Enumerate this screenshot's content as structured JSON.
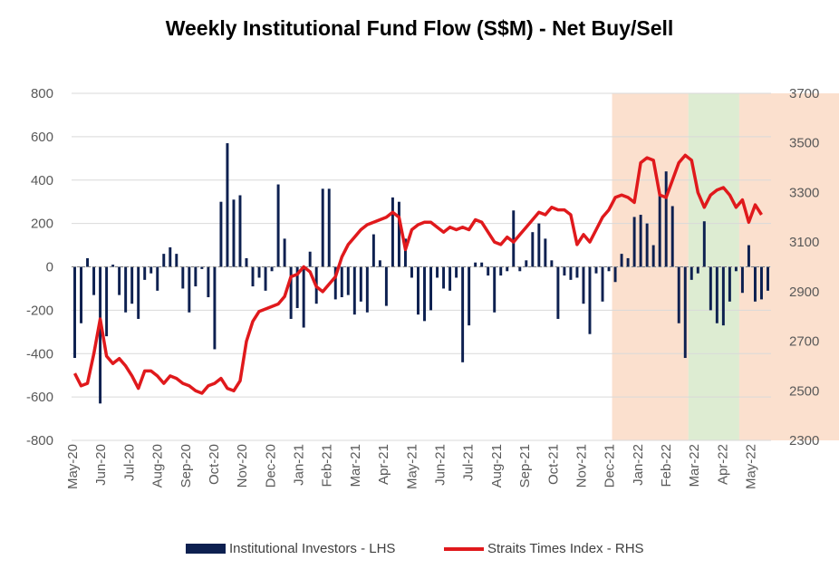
{
  "chart_data": {
    "type": "bar+line",
    "title": "Weekly Institutional Fund Flow (S$M) - Net Buy/Sell",
    "y_left": {
      "label": "",
      "ylim": [
        -800,
        800
      ],
      "ticks": [
        800,
        600,
        400,
        200,
        0,
        -200,
        -400,
        -600,
        -800
      ]
    },
    "y_right": {
      "label": "",
      "ylim": [
        2300,
        3700
      ],
      "ticks": [
        3700,
        3500,
        3300,
        3100,
        2900,
        2700,
        2500,
        2300
      ]
    },
    "x_labels": [
      "May-20",
      "Jun-20",
      "Jul-20",
      "Aug-20",
      "Sep-20",
      "Oct-20",
      "Nov-20",
      "Dec-20",
      "Jan-21",
      "Feb-21",
      "Mar-21",
      "Apr-21",
      "May-21",
      "Jun-21",
      "Jul-21",
      "Aug-21",
      "Sep-21",
      "Oct-21",
      "Nov-21",
      "Dec-21",
      "Jan-22",
      "Feb-22",
      "Mar-22",
      "Apr-22",
      "May-22"
    ],
    "shaded_regions": [
      {
        "from_week": 85,
        "to_week": 97,
        "color": "#f8cbad"
      },
      {
        "from_week": 97,
        "to_week": 105,
        "color": "#c6e0b4"
      },
      {
        "from_week": 105,
        "to_week": 121,
        "color": "#f8cbad"
      }
    ],
    "series": [
      {
        "name": "Institutional Investors - LHS",
        "type": "bar",
        "color": "#0d2050",
        "values": [
          -420,
          -260,
          40,
          -130,
          -630,
          -320,
          10,
          -130,
          -210,
          -170,
          -240,
          -60,
          -30,
          -110,
          60,
          90,
          60,
          -100,
          -210,
          -90,
          -10,
          -140,
          -380,
          300,
          570,
          310,
          330,
          40,
          -90,
          -50,
          -110,
          -20,
          380,
          130,
          -240,
          -190,
          -280,
          70,
          -170,
          360,
          360,
          -150,
          -140,
          -130,
          -220,
          -160,
          -210,
          150,
          30,
          -180,
          320,
          300,
          130,
          -50,
          -220,
          -250,
          -200,
          -50,
          -100,
          -110,
          -50,
          -440,
          -270,
          20,
          20,
          -40,
          -210,
          -40,
          -20,
          260,
          -20,
          30,
          160,
          200,
          130,
          30,
          -240,
          -40,
          -60,
          -50,
          -170,
          -310,
          -30,
          -160,
          -20,
          -70,
          60,
          40,
          230,
          240,
          200,
          100,
          330,
          440,
          280,
          -260,
          -420,
          -60,
          -30,
          210,
          -200,
          -260,
          -270,
          -160,
          -20,
          -120,
          100,
          -160,
          -150,
          -110
        ]
      },
      {
        "name": "Straits Times Index - RHS",
        "type": "line",
        "color": "#e0191c",
        "values": [
          2570,
          2520,
          2530,
          2650,
          2790,
          2640,
          2610,
          2630,
          2600,
          2560,
          2510,
          2580,
          2580,
          2560,
          2530,
          2560,
          2550,
          2530,
          2520,
          2500,
          2490,
          2520,
          2530,
          2550,
          2510,
          2500,
          2540,
          2700,
          2780,
          2820,
          2830,
          2840,
          2850,
          2880,
          2960,
          2970,
          3000,
          2980,
          2920,
          2900,
          2930,
          2960,
          3040,
          3090,
          3120,
          3150,
          3170,
          3180,
          3190,
          3200,
          3220,
          3200,
          3070,
          3150,
          3170,
          3180,
          3180,
          3160,
          3140,
          3160,
          3150,
          3160,
          3150,
          3190,
          3180,
          3140,
          3100,
          3090,
          3120,
          3100,
          3130,
          3160,
          3190,
          3220,
          3210,
          3240,
          3230,
          3230,
          3210,
          3090,
          3130,
          3100,
          3150,
          3200,
          3230,
          3280,
          3290,
          3280,
          3260,
          3420,
          3440,
          3430,
          3290,
          3280,
          3350,
          3420,
          3450,
          3430,
          3300,
          3240,
          3290,
          3310,
          3320,
          3290,
          3240,
          3270,
          3180,
          3250,
          3210
        ]
      }
    ]
  }
}
